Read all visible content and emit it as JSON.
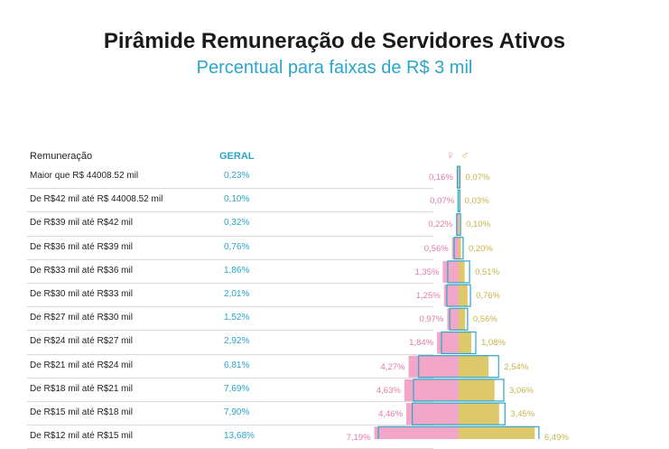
{
  "chart_data": {
    "type": "bar",
    "title": "Pirâmide Remuneração de Servidores Ativos",
    "subtitle": "Percentual para faixas de R$ 3 mil",
    "header_label": "Remuneração",
    "header_geral": "GERAL",
    "categories": [
      "Maior que R$ 44008.52 mil",
      "De R$42 mil até R$ 44008.52 mil",
      "De R$39 mil até R$42 mil",
      "De R$36 mil até R$39 mil",
      "De R$33 mil até R$36 mil",
      "De R$30 mil até R$33 mil",
      "De R$27 mil até R$30 mil",
      "De R$24 mil até R$27 mil",
      "De R$21 mil até R$24 mil",
      "De R$18 mil até R$21 mil",
      "De R$15 mil até R$18 mil",
      "De R$12 mil até R$15 mil"
    ],
    "geral_labels": [
      "0,23%",
      "0,10%",
      "0,32%",
      "0,76%",
      "1,86%",
      "2,01%",
      "1,52%",
      "2,92%",
      "6,81%",
      "7,69%",
      "7,90%",
      "13,68%"
    ],
    "feminino_labels": [
      "0,16%",
      "0,07%",
      "0,22%",
      "0,56%",
      "1,35%",
      "1,25%",
      "0,97%",
      "1,84%",
      "4,27%",
      "4,63%",
      "4,46%",
      "7,19%"
    ],
    "masculino_labels": [
      "0,07%",
      "0,03%",
      "0,10%",
      "0,20%",
      "0,51%",
      "0,76%",
      "0,56%",
      "1,08%",
      "2,54%",
      "3,06%",
      "3,45%",
      "6,49%"
    ],
    "series": [
      {
        "name": "Geral",
        "values": [
          0.23,
          0.1,
          0.32,
          0.76,
          1.86,
          2.01,
          1.52,
          2.92,
          6.81,
          7.69,
          7.9,
          13.68
        ]
      },
      {
        "name": "Feminino",
        "values": [
          0.16,
          0.07,
          0.22,
          0.56,
          1.35,
          1.25,
          0.97,
          1.84,
          4.27,
          4.63,
          4.46,
          7.19
        ]
      },
      {
        "name": "Masculino",
        "values": [
          0.07,
          0.03,
          0.1,
          0.2,
          0.51,
          0.76,
          0.56,
          1.08,
          2.54,
          3.06,
          3.45,
          6.49
        ]
      }
    ],
    "colors": {
      "feminino": "#f2a6c8",
      "masculino": "#ddc96b",
      "geral_outline": "#2aa6c9"
    },
    "gender_icons": {
      "feminino": "female-icon",
      "masculino": "male-icon"
    }
  }
}
